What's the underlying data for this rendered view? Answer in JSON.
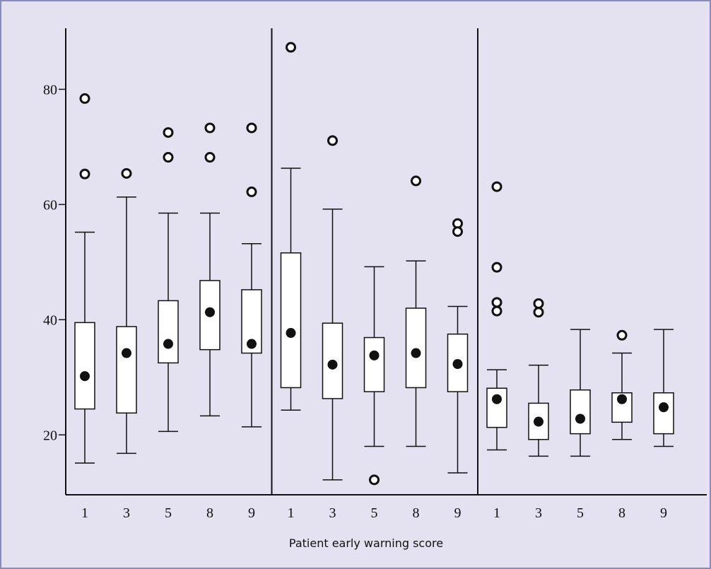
{
  "chart_data": {
    "type": "box",
    "x_label": "Patient early warning score",
    "ylim": [
      9.6,
      90.6
    ],
    "yticks": [
      20,
      40,
      60,
      80
    ],
    "panels": [
      {
        "categories": [
          "1",
          "3",
          "5",
          "8",
          "9"
        ],
        "whisker_low": [
          15.1,
          16.8,
          20.6,
          23.3,
          21.4
        ],
        "q1": [
          24.5,
          23.8,
          32.5,
          34.8,
          34.2
        ],
        "median": [
          30.2,
          34.2,
          35.8,
          41.3,
          35.8
        ],
        "q3": [
          39.5,
          38.8,
          43.3,
          46.8,
          45.2
        ],
        "whisker_high": [
          55.2,
          61.3,
          58.5,
          58.5,
          53.2
        ],
        "outliers": [
          [
            78.4,
            65.3
          ],
          [
            65.4
          ],
          [
            72.5,
            68.2
          ],
          [
            73.3,
            68.2
          ],
          [
            73.3,
            62.2
          ]
        ]
      },
      {
        "categories": [
          "1",
          "3",
          "5",
          "8",
          "9"
        ],
        "whisker_low": [
          24.3,
          12.2,
          18.0,
          18.0,
          13.4
        ],
        "q1": [
          28.2,
          26.3,
          27.5,
          28.2,
          27.5
        ],
        "median": [
          37.7,
          32.2,
          33.8,
          34.2,
          32.3
        ],
        "q3": [
          51.6,
          39.4,
          36.9,
          42.0,
          37.5
        ],
        "whisker_high": [
          66.3,
          59.2,
          49.2,
          50.2,
          42.3
        ],
        "outliers": [
          [
            87.3
          ],
          [
            71.1
          ],
          [
            12.2
          ],
          [
            64.1
          ],
          [
            56.7,
            55.3
          ]
        ]
      },
      {
        "categories": [
          "1",
          "3",
          "5",
          "8",
          "9"
        ],
        "whisker_low": [
          17.4,
          16.3,
          16.3,
          19.2,
          18.0
        ],
        "q1": [
          21.3,
          19.2,
          20.2,
          22.2,
          20.2
        ],
        "median": [
          26.2,
          22.3,
          22.8,
          26.2,
          24.8
        ],
        "q3": [
          28.1,
          25.5,
          27.8,
          27.3,
          27.3
        ],
        "whisker_high": [
          31.3,
          32.1,
          38.3,
          34.2,
          38.3
        ],
        "outliers": [
          [
            63.1,
            49.1,
            43.0,
            41.5
          ],
          [
            42.8,
            41.3
          ],
          [],
          [
            37.3
          ],
          []
        ]
      }
    ]
  }
}
